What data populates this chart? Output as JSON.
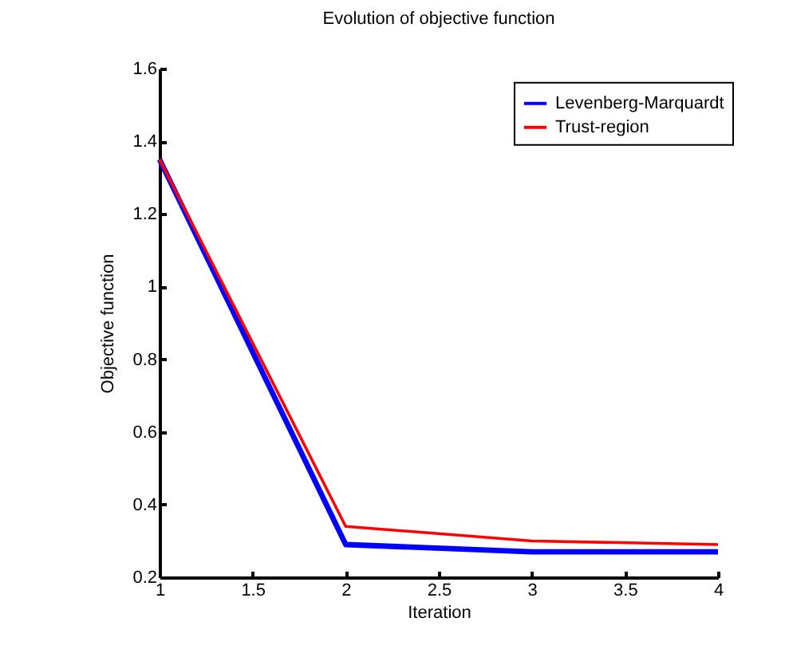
{
  "chart_data": {
    "type": "line",
    "title": "Evolution of objective function",
    "xlabel": "Iteration",
    "ylabel": "Objective function",
    "x": [
      1,
      2,
      3,
      4
    ],
    "series": [
      {
        "name": "Levenberg-Marquardt",
        "color": "#0000ff",
        "values": [
          1.35,
          0.29,
          0.27,
          0.27
        ]
      },
      {
        "name": "Trust-region",
        "color": "#ff0000",
        "values": [
          1.35,
          0.34,
          0.3,
          0.29
        ]
      }
    ],
    "xlim": [
      1,
      4
    ],
    "xticks": [
      1,
      1.5,
      2,
      2.5,
      3,
      3.5,
      4
    ],
    "ylim": [
      0.2,
      1.6
    ],
    "yticks": [
      0.2,
      0.4,
      0.6,
      0.8,
      1,
      1.2,
      1.4,
      1.6
    ],
    "grid": false,
    "legend": "top right",
    "marker": "none",
    "line_style": "solid"
  }
}
